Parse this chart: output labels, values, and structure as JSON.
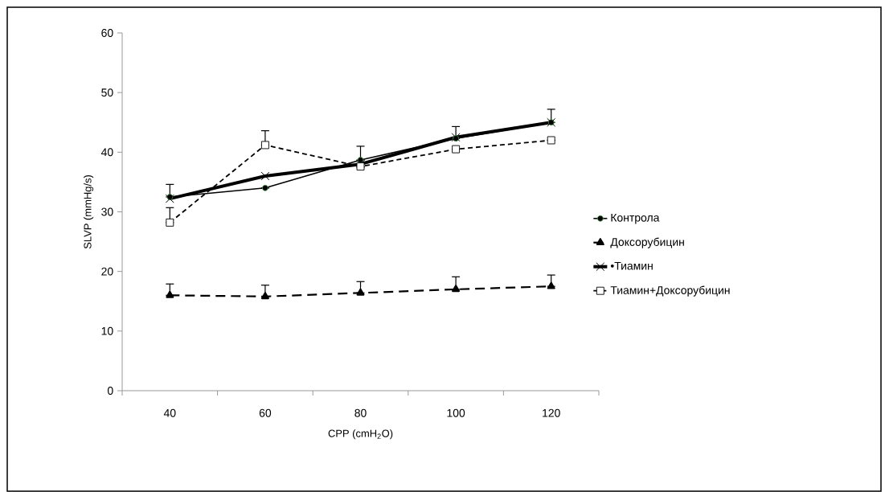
{
  "chart_data": {
    "type": "line",
    "xlabel": "CPP (cmH$_{2}$O)",
    "ylabel": "SLVP (mmHg/s)",
    "categories": [
      "40",
      "60",
      "80",
      "100",
      "120"
    ],
    "ylim": [
      0,
      60
    ],
    "yticks": [
      0,
      10,
      20,
      30,
      40,
      50,
      60
    ],
    "legend": "right",
    "series": [
      {
        "name": "Контрола",
        "color": "#000000",
        "marker": "circle",
        "line_style": "solid",
        "values": [
          32.5,
          34,
          38.7,
          42.3,
          45
        ],
        "errors": [
          [
            32.5,
            34.6
          ],
          null,
          [
            38.7,
            41
          ],
          [
            42.3,
            44.3
          ],
          [
            45,
            47.2
          ]
        ]
      },
      {
        "name": "Доксорубицин",
        "color": "#000000",
        "marker": "triangle",
        "line_style": "dashed",
        "values": [
          16,
          15.8,
          16.4,
          17,
          17.5
        ],
        "errors": [
          [
            16,
            17.9
          ],
          [
            15.8,
            17.7
          ],
          [
            16.4,
            18.3
          ],
          [
            17,
            19.1
          ],
          [
            17.5,
            19.4
          ]
        ]
      },
      {
        "name": "•Тиамин",
        "color": "#000000",
        "marker": "cross",
        "line_style": "solid",
        "values": [
          32.2,
          36,
          38,
          42.5,
          45
        ]
      },
      {
        "name": "Тиамин+Доксорубицин",
        "color": "#000000",
        "marker": "square",
        "line_style": "dotted",
        "values": [
          28.2,
          41.2,
          37.6,
          40.5,
          42
        ],
        "errors": [
          [
            28.2,
            30.7
          ],
          [
            41.2,
            43.6
          ],
          null,
          null,
          null
        ]
      }
    ]
  }
}
